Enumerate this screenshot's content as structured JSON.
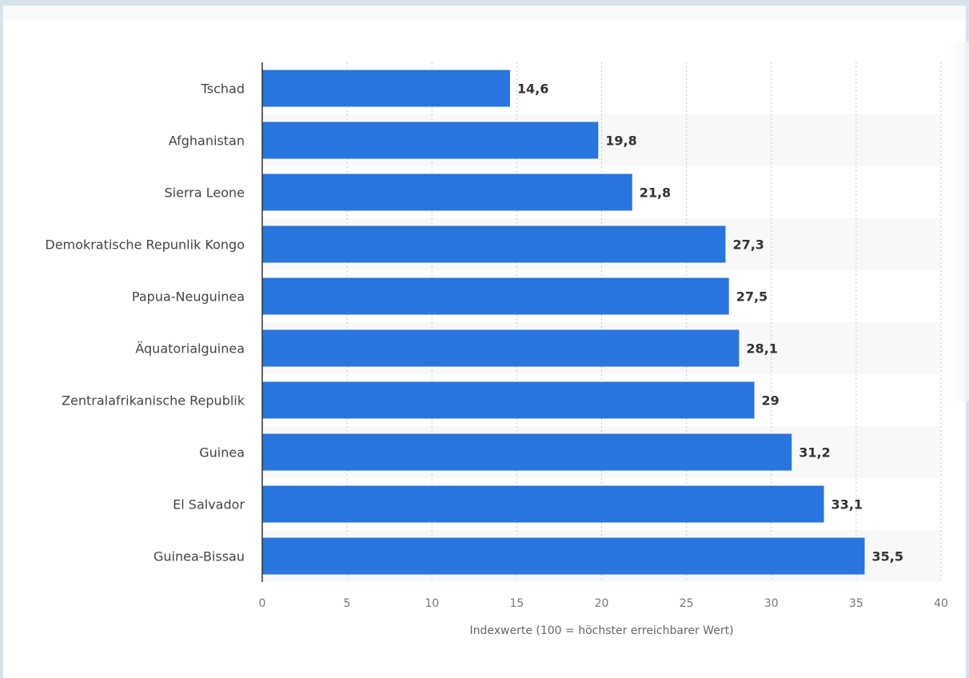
{
  "chart_data": {
    "type": "bar",
    "orientation": "horizontal",
    "categories": [
      "Tschad",
      "Afghanistan",
      "Sierra Leone",
      "Demokratische Repunlik Kongo",
      "Papua-Neuguinea",
      "Äquatorialguinea",
      "Zentralafrikanische Republik",
      "Guinea",
      "El Salvador",
      "Guinea-Bissau"
    ],
    "values": [
      14.6,
      19.8,
      21.8,
      27.3,
      27.5,
      28.1,
      29,
      31.2,
      33.1,
      35.5
    ],
    "value_labels": [
      "14,6",
      "19,8",
      "21,8",
      "27,3",
      "27,5",
      "28,1",
      "29",
      "31,2",
      "33,1",
      "35,5"
    ],
    "xlabel": "Indexwerte (100 = höchster erreichbarer Wert)",
    "xlim": [
      0,
      40
    ],
    "xticks": [
      0,
      5,
      10,
      15,
      20,
      25,
      30,
      35,
      40
    ],
    "grid": "vertical dotted",
    "bar_color": "#2775dd",
    "stripe_color": "#f8f8f8"
  }
}
